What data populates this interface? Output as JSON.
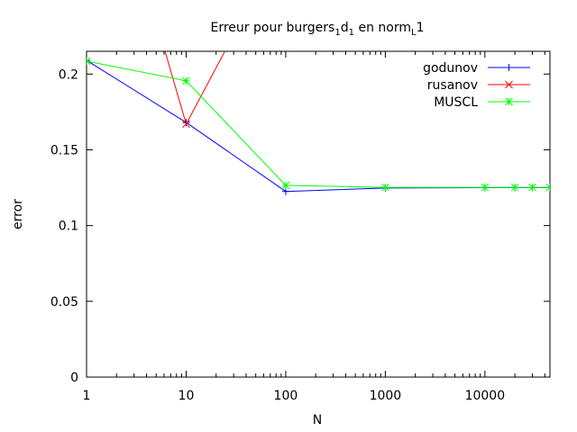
{
  "chart_data": {
    "type": "line",
    "title": {
      "parts": [
        {
          "text": "Erreur pour burgers",
          "sub": false
        },
        {
          "text": "1",
          "sub": true
        },
        {
          "text": "d",
          "sub": false
        },
        {
          "text": "1",
          "sub": true
        },
        {
          "text": " en norm",
          "sub": false
        },
        {
          "text": "L",
          "sub": true
        },
        {
          "text": "1",
          "sub": false
        }
      ]
    },
    "xlabel": "N",
    "ylabel": "error",
    "x_scale": "log",
    "xlim": [
      1,
      45000
    ],
    "ylim": [
      0,
      0.215
    ],
    "x_ticks": [
      {
        "value": 1,
        "label": "1"
      },
      {
        "value": 10,
        "label": "10"
      },
      {
        "value": 100,
        "label": "100"
      },
      {
        "value": 1000,
        "label": "1000"
      },
      {
        "value": 10000,
        "label": "10000"
      }
    ],
    "y_ticks": [
      {
        "value": 0,
        "label": "0"
      },
      {
        "value": 0.05,
        "label": "0.05"
      },
      {
        "value": 0.1,
        "label": "0.1"
      },
      {
        "value": 0.15,
        "label": "0.15"
      },
      {
        "value": 0.2,
        "label": "0.2"
      }
    ],
    "grid": false,
    "legend_position": "top-right",
    "series": [
      {
        "name": "godunov",
        "color": "#0000ff",
        "marker": "plus",
        "x": [
          1,
          10,
          100,
          1000,
          10000,
          20000,
          30000,
          45000
        ],
        "y": [
          0.209,
          0.168,
          0.1225,
          0.1248,
          0.125,
          0.125,
          0.125,
          0.125
        ]
      },
      {
        "name": "rusanov",
        "color": "#ff0000",
        "marker": "cross",
        "x": [
          4.3,
          10,
          47
        ],
        "y": [
          0.25,
          0.167,
          0.25
        ]
      },
      {
        "name": "MUSCL",
        "color": "#00ff00",
        "marker": "star",
        "x": [
          1,
          10,
          100,
          1000,
          10000,
          20000,
          30000,
          45000
        ],
        "y": [
          0.2085,
          0.1955,
          0.1265,
          0.1252,
          0.1252,
          0.1252,
          0.1252,
          0.1252
        ]
      }
    ]
  }
}
